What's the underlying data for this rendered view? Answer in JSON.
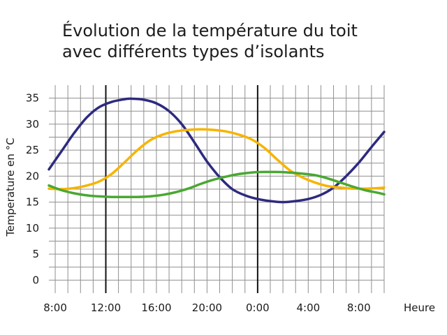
{
  "chart_data": {
    "type": "line",
    "title_lines": [
      "Évolution de la température du toit",
      "avec différents types d’isolants"
    ],
    "ylabel": "Temperature en °C",
    "xlabel": "Heure",
    "x_range": [
      7.5,
      34.0
    ],
    "ylim": [
      -2.5,
      37.5
    ],
    "y_ticks": [
      0,
      5,
      10,
      15,
      20,
      25,
      30,
      35
    ],
    "x_ticks": [
      {
        "x": 8,
        "label": "8:00"
      },
      {
        "x": 12,
        "label": "12:00"
      },
      {
        "x": 16,
        "label": "16:00"
      },
      {
        "x": 20,
        "label": "20:00"
      },
      {
        "x": 24,
        "label": "0:00"
      },
      {
        "x": 28,
        "label": "4:00"
      },
      {
        "x": 32,
        "label": "8:00"
      }
    ],
    "major_vlines": [
      12,
      24
    ],
    "grid": true,
    "series": [
      {
        "color": "#2d2a7f",
        "x": [
          7.5,
          8.5,
          9.5,
          10.5,
          11.5,
          12.5,
          13.5,
          14.0,
          15.0,
          16.0,
          17.0,
          18.0,
          19.0,
          20.0,
          21.0,
          22.0,
          23.0,
          24.0,
          25.0,
          26.0,
          27.0,
          28.0,
          29.0,
          30.0,
          31.0,
          32.0,
          33.0,
          34.0
        ],
        "y": [
          21.3,
          24.8,
          28.3,
          31.3,
          33.3,
          34.3,
          34.8,
          34.9,
          34.7,
          34.0,
          32.5,
          30.0,
          26.5,
          22.8,
          19.8,
          17.5,
          16.3,
          15.6,
          15.2,
          15.0,
          15.2,
          15.6,
          16.4,
          17.8,
          20.0,
          22.6,
          25.6,
          28.5
        ]
      },
      {
        "color": "#f7b400",
        "x": [
          7.5,
          8.5,
          9.5,
          10.5,
          11.5,
          12.5,
          13.5,
          14.5,
          15.5,
          16.5,
          17.5,
          18.5,
          19.5,
          20.5,
          21.5,
          22.5,
          23.5,
          24.5,
          25.5,
          26.5,
          27.5,
          28.5,
          29.5,
          30.5,
          31.5,
          32.5,
          33.5,
          34.0
        ],
        "y": [
          17.6,
          17.5,
          17.7,
          18.2,
          19.0,
          20.5,
          22.7,
          25.0,
          26.9,
          28.0,
          28.6,
          28.9,
          29.0,
          28.9,
          28.6,
          28.0,
          27.1,
          25.5,
          23.3,
          21.2,
          19.8,
          18.8,
          18.1,
          17.8,
          17.6,
          17.6,
          17.7,
          17.8
        ]
      },
      {
        "color": "#4aa832",
        "x": [
          7.5,
          8.5,
          9.5,
          10.5,
          11.5,
          12.5,
          13.5,
          14.5,
          15.5,
          16.5,
          17.5,
          18.5,
          19.5,
          20.5,
          21.5,
          22.5,
          23.5,
          24.5,
          25.5,
          26.5,
          27.5,
          28.5,
          29.5,
          30.5,
          31.5,
          32.5,
          33.5,
          34.0
        ],
        "y": [
          18.2,
          17.3,
          16.7,
          16.3,
          16.1,
          16.0,
          16.0,
          16.0,
          16.1,
          16.4,
          16.9,
          17.6,
          18.5,
          19.3,
          19.9,
          20.4,
          20.7,
          20.8,
          20.8,
          20.7,
          20.5,
          20.2,
          19.6,
          18.8,
          18.0,
          17.3,
          16.8,
          16.5
        ]
      }
    ]
  }
}
